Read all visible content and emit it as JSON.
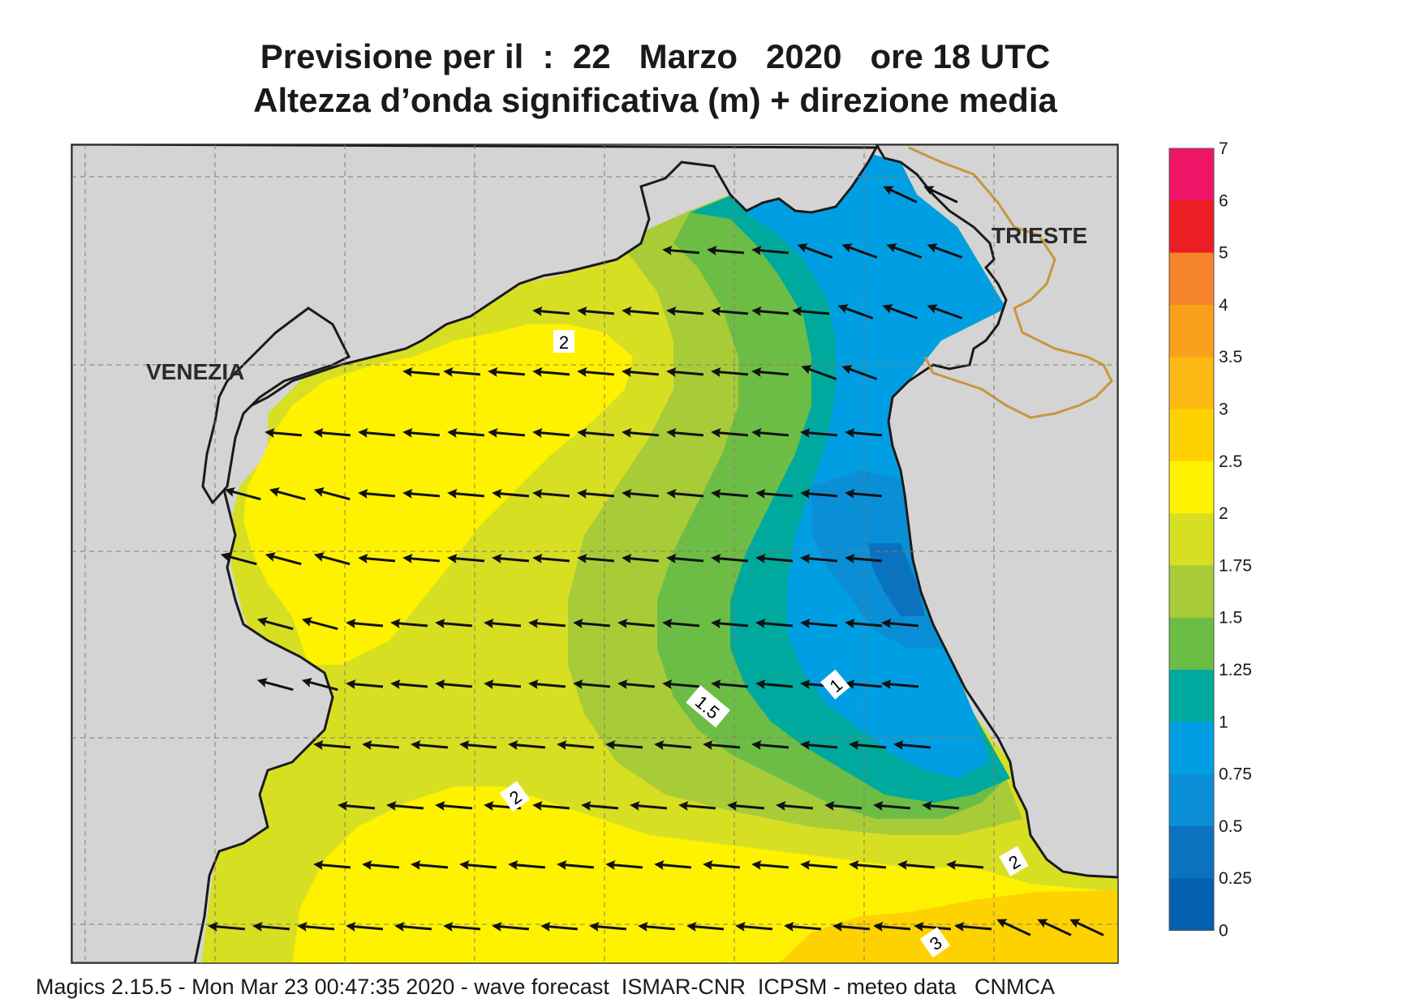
{
  "title": {
    "line1": "Previsione per il  :  22   Marzo   2020   ore 18 UTC",
    "line2": "Altezza d’onda significativa (m) + direzione media"
  },
  "map": {
    "places": {
      "venezia": "VENEZIA",
      "trieste": "TRIESTE"
    },
    "contour_labels": [
      "2",
      "1",
      "1.5",
      "2",
      "2",
      "3"
    ],
    "land_color": "#d4d4d4",
    "coast_color": "#1a1a1a",
    "border_color": "#c8963c",
    "arrow_direction": "toward west-southwest"
  },
  "legend": {
    "labels": [
      "7",
      "6",
      "5",
      "4",
      "3.5",
      "3",
      "2.5",
      "2",
      "1.75",
      "1.5",
      "1.25",
      "1",
      "0.75",
      "0.5",
      "0.25",
      "0"
    ],
    "colors": [
      "#ee1566",
      "#ec1e24",
      "#f6842a",
      "#f9a01b",
      "#fdb813",
      "#fdd200",
      "#fff200",
      "#d7df23",
      "#a8cc38",
      "#6cbd45",
      "#00a99d",
      "#009fe3",
      "#0a8fd6",
      "#0a72be",
      "#0660b0"
    ]
  },
  "footer": "Magics 2.15.5 - Mon Mar 23 00:47:35 2020 - wave forecast  ISMAR-CNR  ICPSM - meteo data   CNMCA"
}
